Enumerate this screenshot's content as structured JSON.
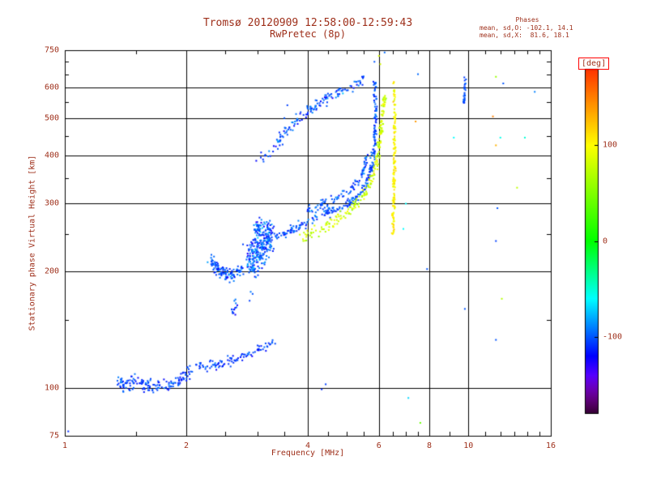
{
  "colors": {
    "text": "#9e2f1a",
    "axis": "#000000",
    "background": "#ffffff",
    "colorbar_box": "#ff0000"
  },
  "chart_data": {
    "type": "scatter",
    "title": "Tromsø 20120909 12:58:00-12:59:43",
    "subtitle": "RwPretec (8p)",
    "xlabel": "Frequency [MHz]",
    "ylabel": "Stationary phase Virtual Height [km]",
    "legend": {
      "title": "Phases",
      "lines": [
        "mean, sd,O: -102.1, 14.1",
        "mean, sd,X:  81.6, 18.1"
      ]
    },
    "x_scale": "log",
    "y_scale": "log",
    "xlim": [
      1,
      16
    ],
    "ylim": [
      75,
      750
    ],
    "x_ticks": [
      1,
      2,
      4,
      6,
      8,
      10,
      16
    ],
    "y_ticks": [
      75,
      100,
      200,
      300,
      400,
      500,
      600,
      750
    ],
    "x_gridlines": [
      2,
      4,
      6,
      8,
      10
    ],
    "y_gridlines": [
      100,
      200,
      300,
      400,
      500,
      600
    ],
    "x_minor_ticks": [
      1.5,
      2.5,
      3,
      3.5,
      4.5,
      5,
      5.5,
      6.5,
      7,
      7.5,
      9,
      11,
      12,
      13,
      14,
      15
    ],
    "y_minor_ticks": [
      150,
      250,
      350,
      450,
      550,
      650,
      700
    ],
    "colorbar": {
      "label": "[deg]",
      "range": [
        -180,
        180
      ],
      "ticks": [
        100,
        0,
        -100
      ]
    },
    "point_size": 2,
    "traces": [
      {
        "name": "e-region-flat",
        "phase": -105,
        "phase_sd": 8,
        "n": 150,
        "jf": 0.012,
        "jh": 2,
        "path": [
          [
            1.35,
            104
          ],
          [
            1.42,
            101
          ],
          [
            1.5,
            105
          ],
          [
            1.58,
            102
          ],
          [
            1.66,
            100
          ],
          [
            1.74,
            102
          ],
          [
            1.82,
            101
          ],
          [
            1.92,
            104
          ],
          [
            2.0,
            108
          ],
          [
            2.08,
            111
          ]
        ]
      },
      {
        "name": "e-region-rise",
        "phase": -105,
        "phase_sd": 8,
        "n": 95,
        "jf": 0.008,
        "jh": 1.6,
        "path": [
          [
            2.1,
            112
          ],
          [
            2.3,
            114
          ],
          [
            2.5,
            116
          ],
          [
            2.7,
            119
          ],
          [
            2.9,
            123
          ],
          [
            3.1,
            128
          ],
          [
            3.3,
            132
          ]
        ]
      },
      {
        "name": "mid-cluster",
        "phase": -108,
        "phase_sd": 10,
        "n": 14,
        "jf": 0.012,
        "jh": 4,
        "path": [
          [
            2.6,
            158
          ],
          [
            2.68,
            164
          ]
        ]
      },
      {
        "name": "f-ledge",
        "phase": -102,
        "phase_sd": 11,
        "n": 110,
        "jf": 0.01,
        "jh": 4,
        "path": [
          [
            2.28,
            213
          ],
          [
            2.36,
            206
          ],
          [
            2.44,
            200
          ],
          [
            2.52,
            197
          ],
          [
            2.6,
            196
          ],
          [
            2.68,
            199
          ],
          [
            2.76,
            203
          ]
        ]
      },
      {
        "name": "f-blob",
        "phase": -100,
        "phase_sd": 14,
        "n": 230,
        "jf": 0.018,
        "jh": 14,
        "path": [
          [
            2.85,
            215
          ],
          [
            2.95,
            222
          ],
          [
            3.05,
            230
          ],
          [
            3.15,
            238
          ],
          [
            3.25,
            244
          ]
        ]
      },
      {
        "name": "f-blob-top",
        "phase": -100,
        "phase_sd": 12,
        "n": 55,
        "jf": 0.012,
        "jh": 8,
        "path": [
          [
            2.95,
            255
          ],
          [
            3.05,
            262
          ],
          [
            3.15,
            258
          ],
          [
            3.28,
            252
          ]
        ]
      },
      {
        "name": "f-rise-main",
        "phase": -102,
        "phase_sd": 9,
        "n": 270,
        "jf": 0.008,
        "jh": 4,
        "path": [
          [
            3.3,
            246
          ],
          [
            3.5,
            252
          ],
          [
            3.7,
            258
          ],
          [
            3.9,
            266
          ],
          [
            4.1,
            274
          ],
          [
            4.35,
            281
          ],
          [
            4.6,
            288
          ],
          [
            4.85,
            295
          ],
          [
            5.1,
            303
          ],
          [
            5.3,
            313
          ],
          [
            5.5,
            327
          ],
          [
            5.62,
            342
          ],
          [
            5.72,
            362
          ],
          [
            5.8,
            390
          ],
          [
            5.85,
            425
          ],
          [
            5.88,
            465
          ],
          [
            5.9,
            510
          ],
          [
            5.9,
            555
          ],
          [
            5.88,
            595
          ],
          [
            5.86,
            625
          ]
        ]
      },
      {
        "name": "f-rise-parallel",
        "phase": -102,
        "phase_sd": 9,
        "n": 90,
        "jf": 0.008,
        "jh": 4,
        "path": [
          [
            4.0,
            290
          ],
          [
            4.3,
            298
          ],
          [
            4.6,
            306
          ],
          [
            4.9,
            316
          ],
          [
            5.1,
            326
          ],
          [
            5.3,
            340
          ],
          [
            5.45,
            358
          ],
          [
            5.55,
            380
          ],
          [
            5.62,
            408
          ]
        ]
      },
      {
        "name": "upper-arc",
        "phase": -100,
        "phase_sd": 11,
        "n": 135,
        "jf": 0.012,
        "jh": 8,
        "path": [
          [
            3.32,
            415
          ],
          [
            3.42,
            445
          ],
          [
            3.55,
            470
          ],
          [
            3.72,
            492
          ],
          [
            3.95,
            515
          ],
          [
            4.2,
            540
          ],
          [
            4.5,
            565
          ],
          [
            4.8,
            585
          ],
          [
            5.1,
            602
          ],
          [
            5.35,
            618
          ],
          [
            5.55,
            632
          ]
        ]
      },
      {
        "name": "arc-tail",
        "phase": -104,
        "phase_sd": 9,
        "n": 10,
        "jf": 0.02,
        "jh": 10,
        "path": [
          [
            3.05,
            390
          ],
          [
            3.2,
            405
          ]
        ]
      },
      {
        "name": "x-rise",
        "phase": 82,
        "phase_sd": 12,
        "n": 210,
        "jf": 0.01,
        "jh": 5,
        "path": [
          [
            3.85,
            243
          ],
          [
            4.05,
            250
          ],
          [
            4.3,
            258
          ],
          [
            4.55,
            266
          ],
          [
            4.8,
            276
          ],
          [
            5.05,
            288
          ],
          [
            5.3,
            302
          ],
          [
            5.55,
            320
          ],
          [
            5.75,
            345
          ],
          [
            5.9,
            378
          ],
          [
            6.0,
            420
          ],
          [
            6.08,
            470
          ],
          [
            6.15,
            525
          ],
          [
            6.18,
            570
          ]
        ]
      },
      {
        "name": "x-asymptote",
        "phase": 102,
        "phase_sd": 9,
        "n": 160,
        "jf": 0.005,
        "jh": 0,
        "path": [
          [
            6.5,
            250
          ],
          [
            6.53,
            300
          ],
          [
            6.55,
            380
          ],
          [
            6.56,
            460
          ],
          [
            6.56,
            540
          ],
          [
            6.55,
            600
          ],
          [
            6.53,
            635
          ]
        ]
      },
      {
        "name": "streak-10mhz",
        "phase": -100,
        "phase_sd": 8,
        "n": 30,
        "jf": 0.004,
        "jh": 0,
        "path": [
          [
            9.75,
            545
          ],
          [
            9.8,
            580
          ],
          [
            9.82,
            615
          ],
          [
            9.8,
            645
          ]
        ]
      }
    ],
    "noise_points": [
      [
        1.02,
        77,
        -110
      ],
      [
        2.87,
        168,
        -105
      ],
      [
        2.92,
        175,
        -100
      ],
      [
        3.5,
        500,
        -100
      ],
      [
        3.56,
        540,
        -105
      ],
      [
        4.33,
        99,
        -110
      ],
      [
        4.43,
        102,
        -105
      ],
      [
        5.85,
        700,
        -100
      ],
      [
        6.0,
        725,
        85
      ],
      [
        6.2,
        740,
        -95
      ],
      [
        6.05,
        690,
        85
      ],
      [
        6.6,
        370,
        120
      ],
      [
        6.9,
        258,
        -60
      ],
      [
        7.0,
        300,
        -60
      ],
      [
        7.1,
        94,
        -70
      ],
      [
        7.6,
        81,
        40
      ],
      [
        7.5,
        650,
        -95
      ],
      [
        7.4,
        490,
        140
      ],
      [
        7.9,
        203,
        -100
      ],
      [
        9.2,
        445,
        -60
      ],
      [
        9.8,
        160,
        -100
      ],
      [
        11.5,
        505,
        150
      ],
      [
        11.7,
        640,
        60
      ],
      [
        12.2,
        615,
        -100
      ],
      [
        12.0,
        445,
        -55
      ],
      [
        11.7,
        425,
        130
      ],
      [
        11.8,
        292,
        -100
      ],
      [
        11.7,
        240,
        -105
      ],
      [
        12.1,
        170,
        70
      ],
      [
        11.7,
        133,
        -100
      ],
      [
        13.2,
        330,
        75
      ],
      [
        13.8,
        445,
        -50
      ],
      [
        14.6,
        585,
        -90
      ]
    ]
  }
}
